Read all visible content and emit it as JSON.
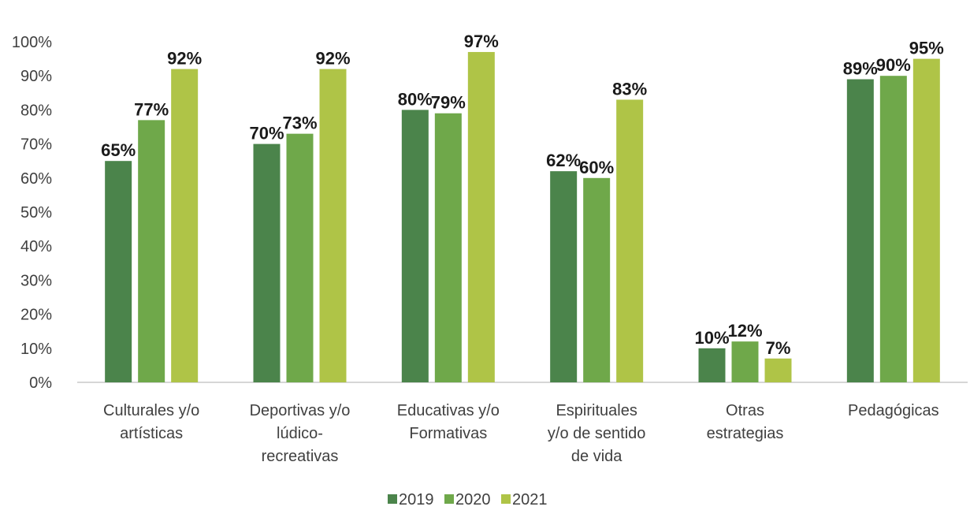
{
  "chart_data": {
    "type": "bar",
    "title": "",
    "xlabel": "",
    "ylabel": "",
    "ylim": [
      0,
      100
    ],
    "yticks": [
      "0%",
      "10%",
      "20%",
      "30%",
      "40%",
      "50%",
      "60%",
      "70%",
      "80%",
      "90%",
      "100%"
    ],
    "categories": [
      [
        "Culturales y/o",
        "artísticas"
      ],
      [
        "Deportivas y/o",
        "lúdico-",
        "recreativas"
      ],
      [
        "Educativas y/o",
        "Formativas"
      ],
      [
        "Espirituales",
        "y/o de sentido",
        "de vida"
      ],
      [
        "Otras",
        "estrategias"
      ],
      [
        "Pedagógicas"
      ]
    ],
    "series": [
      {
        "name": "2019",
        "color": "#4b844b",
        "values": [
          65,
          70,
          80,
          62,
          10,
          89
        ],
        "labels": [
          "65%",
          "70%",
          "80%",
          "62%",
          "10%",
          "89%"
        ]
      },
      {
        "name": "2020",
        "color": "#6fa84a",
        "values": [
          77,
          73,
          79,
          60,
          12,
          90
        ],
        "labels": [
          "77%",
          "73%",
          "79%",
          "60%",
          "12%",
          "90%"
        ]
      },
      {
        "name": "2021",
        "color": "#afc447",
        "values": [
          92,
          92,
          97,
          83,
          7,
          95
        ],
        "labels": [
          "92%",
          "92%",
          "97%",
          "83%",
          "7%",
          "95%"
        ]
      }
    ],
    "grid": false,
    "legend_position": "bottom"
  }
}
